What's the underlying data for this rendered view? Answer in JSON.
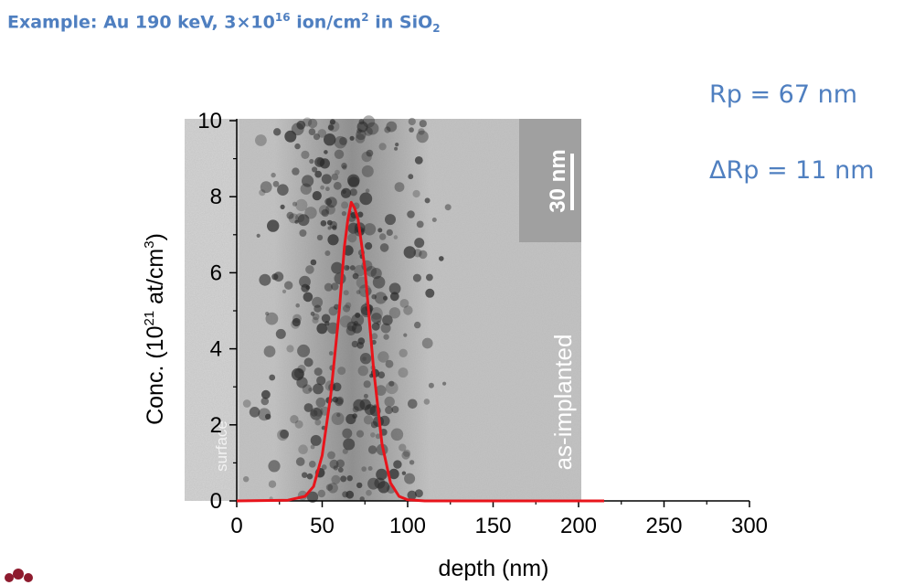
{
  "title": {
    "prefix": "Example: Au 190 keV, 3×10",
    "fluence_exp": "16",
    "unit_mid": " ion/cm",
    "area_exp": "2",
    "target_prefix": " in SiO",
    "target_sub": "2"
  },
  "params": {
    "rp": "Rp = 67 nm",
    "drp": "ΔRp = 11 nm"
  },
  "colors": {
    "title": "#4f7fc0",
    "curve": "#e8141b",
    "axes": "#000000"
  },
  "chart_data": {
    "type": "line",
    "background": "TEM micrograph of implanted Au nanoclusters",
    "xlabel": "depth (nm)",
    "ylabel": "Conc. (10",
    "ylabel_exp": "21",
    "ylabel_unit": " at/cm",
    "ylabel_unit_exp": "3",
    "ylabel_close": ")",
    "xlim": [
      0,
      300
    ],
    "ylim": [
      0,
      10
    ],
    "x_ticks": [
      0,
      50,
      100,
      150,
      200,
      250,
      300
    ],
    "y_ticks": [
      0,
      2,
      4,
      6,
      8,
      10
    ],
    "image_annotations": {
      "scale_bar": "30 nm",
      "sample_state": "as-implanted",
      "surface": "surface"
    },
    "series": [
      {
        "x": [
          0,
          30,
          40,
          45,
          50,
          55,
          60,
          63,
          65,
          67,
          69,
          71,
          75,
          80,
          85,
          90,
          95,
          100,
          110,
          120,
          150,
          200,
          215
        ],
        "values": [
          0,
          0.02,
          0.12,
          0.38,
          1.2,
          2.79,
          5.0,
          6.68,
          7.4,
          7.85,
          7.7,
          7.4,
          6.1,
          3.5,
          1.5,
          0.47,
          0.12,
          0.03,
          0,
          0,
          0,
          0,
          0
        ]
      }
    ]
  }
}
